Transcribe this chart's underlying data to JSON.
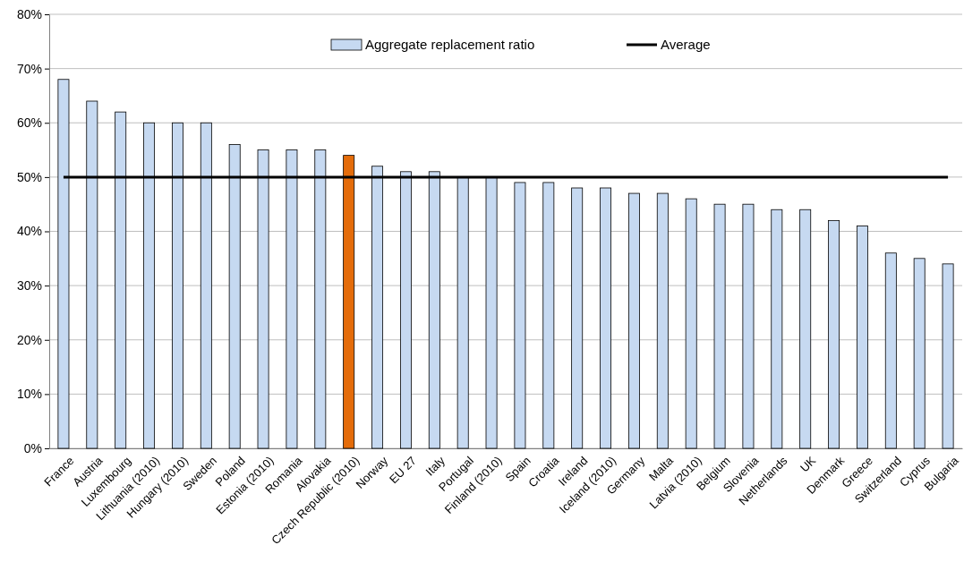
{
  "chart_data": {
    "type": "bar",
    "categories": [
      "France",
      "Austria",
      "Luxembourg",
      "Lithuania (2010)",
      "Hungary (2010)",
      "Sweden",
      "Poland",
      "Estonia (2010)",
      "Romania",
      "Alovakia",
      "Czech Republic (2010)",
      "Norway",
      "EU 27",
      "Italy",
      "Portugal",
      "Finland (2010)",
      "Spain",
      "Croatia",
      "Ireland",
      "Iceland (2010)",
      "Germany",
      "Malta",
      "Latvia (2010)",
      "Belgium",
      "Slovenia",
      "Netherlands",
      "UK",
      "Denmark",
      "Greece",
      "Switzerland",
      "Cyprus",
      "Bulgaria"
    ],
    "series": [
      {
        "name": "Aggregate replacement ratio",
        "color": "#c6d9f1",
        "colors": [
          "#c6d9f1",
          "#c6d9f1",
          "#c6d9f1",
          "#c6d9f1",
          "#c6d9f1",
          "#c6d9f1",
          "#c6d9f1",
          "#c6d9f1",
          "#c6d9f1",
          "#c6d9f1",
          "#e46c0a",
          "#c6d9f1",
          "#c6d9f1",
          "#c6d9f1",
          "#c6d9f1",
          "#c6d9f1",
          "#c6d9f1",
          "#c6d9f1",
          "#c6d9f1",
          "#c6d9f1",
          "#c6d9f1",
          "#c6d9f1",
          "#c6d9f1",
          "#c6d9f1",
          "#c6d9f1",
          "#c6d9f1",
          "#c6d9f1",
          "#c6d9f1",
          "#c6d9f1",
          "#c6d9f1",
          "#c6d9f1",
          "#c6d9f1"
        ],
        "values": [
          68,
          64,
          62,
          60,
          60,
          60,
          56,
          55,
          55,
          55,
          54,
          52,
          51,
          51,
          50,
          50,
          49,
          49,
          48,
          48,
          47,
          47,
          46,
          45,
          45,
          44,
          44,
          42,
          41,
          36,
          35,
          34
        ]
      },
      {
        "name": "Average",
        "type": "line",
        "color": "#000000",
        "values": [
          50,
          50,
          50,
          50,
          50,
          50,
          50,
          50,
          50,
          50,
          50,
          50,
          50,
          50,
          50,
          50,
          50,
          50,
          50,
          50,
          50,
          50,
          50,
          50,
          50,
          50,
          50,
          50,
          50,
          50,
          50,
          50
        ]
      }
    ],
    "ylim": [
      0,
      80
    ],
    "yticks": [
      {
        "value": 0,
        "label": "0%"
      },
      {
        "value": 10,
        "label": "10%"
      },
      {
        "value": 20,
        "label": "20%"
      },
      {
        "value": 30,
        "label": "30%"
      },
      {
        "value": 40,
        "label": "40%"
      },
      {
        "value": 50,
        "label": "50%"
      },
      {
        "value": 60,
        "label": "60%"
      },
      {
        "value": 70,
        "label": "70%"
      },
      {
        "value": 80,
        "label": "80%"
      }
    ],
    "grid": "y",
    "legend": "top",
    "marker": "none",
    "line_style": "solid"
  }
}
